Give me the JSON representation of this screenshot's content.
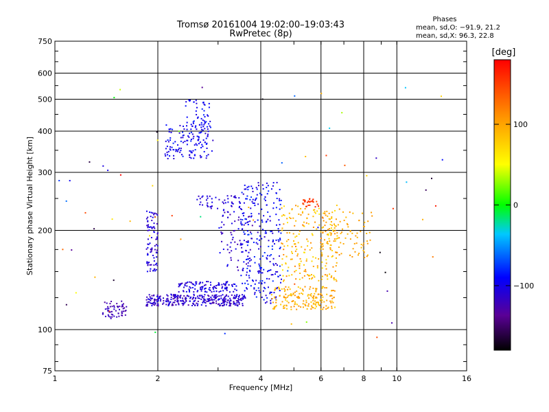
{
  "chart_data": {
    "type": "scatter",
    "title": "Tromsø 20161004 19:02:00–19:03:43",
    "subtitle": "RwPretec (8p)",
    "xlabel": "Frequency [MHz]",
    "ylabel": "Stationary phase Virtual Height [km]",
    "x_scale": "log",
    "y_scale": "log",
    "xlim": [
      1,
      16
    ],
    "ylim": [
      75,
      750
    ],
    "xticks": [
      1,
      2,
      4,
      6,
      8,
      10,
      16
    ],
    "yticks": [
      75,
      100,
      200,
      300,
      400,
      500,
      600,
      750
    ],
    "grid": true,
    "stats": {
      "heading": "Phases",
      "o_line": "mean, sd,O: −91.9, 21.2",
      "x_line": "mean, sd,X:  96.3, 22.8"
    },
    "colorbar": {
      "label": "[deg]",
      "range": [
        -180,
        180
      ],
      "ticks": [
        100,
        0,
        -100
      ],
      "tick_labels": [
        "100",
        "0",
        "−100"
      ],
      "colors": [
        "#000000",
        "#5a0096",
        "#0000ff",
        "#00c8ff",
        "#00ff00",
        "#ffff00",
        "#ff9600",
        "#ff0000"
      ]
    },
    "clusters": [
      {
        "f": [
          1.38,
          1.62
        ],
        "h": [
          108,
          122
        ],
        "phase": [
          -135,
          -110
        ],
        "n": 60
      },
      {
        "f": [
          1.85,
          3.6
        ],
        "h": [
          118,
          128
        ],
        "phase": [
          -130,
          -95
        ],
        "n": 320
      },
      {
        "f": [
          2.3,
          3.4
        ],
        "h": [
          130,
          140
        ],
        "phase": [
          -120,
          -90
        ],
        "n": 120
      },
      {
        "f": [
          1.85,
          2.0
        ],
        "h": [
          150,
          230
        ],
        "phase": [
          -125,
          -90
        ],
        "n": 90
      },
      {
        "f": [
          2.1,
          2.9
        ],
        "h": [
          330,
          420
        ],
        "phase": [
          -115,
          -80
        ],
        "n": 140
      },
      {
        "f": [
          2.4,
          2.85
        ],
        "h": [
          420,
          500
        ],
        "phase": [
          -110,
          -80
        ],
        "n": 40
      },
      {
        "f": [
          2.6,
          3.5
        ],
        "h": [
          230,
          255
        ],
        "phase": [
          -120,
          -95
        ],
        "n": 50
      },
      {
        "f": [
          3.0,
          3.8
        ],
        "h": [
          150,
          230
        ],
        "phase": [
          -130,
          -90
        ],
        "n": 80
      },
      {
        "f": [
          3.5,
          4.6
        ],
        "h": [
          120,
          280
        ],
        "phase": [
          -115,
          -75
        ],
        "n": 260
      },
      {
        "f": [
          4.3,
          6.6
        ],
        "h": [
          115,
          135
        ],
        "phase": [
          75,
          115
        ],
        "n": 180
      },
      {
        "f": [
          4.6,
          6.8
        ],
        "h": [
          140,
          240
        ],
        "phase": [
          60,
          120
        ],
        "n": 220
      },
      {
        "f": [
          5.3,
          5.9
        ],
        "h": [
          235,
          250
        ],
        "phase": [
          140,
          165
        ],
        "n": 30
      },
      {
        "f": [
          6.0,
          8.5
        ],
        "h": [
          165,
          230
        ],
        "phase": [
          85,
          110
        ],
        "n": 90
      },
      {
        "f": [
          1.0,
          14.0
        ],
        "h": [
          90,
          620
        ],
        "phase": [
          -180,
          180
        ],
        "n": 70
      }
    ]
  }
}
